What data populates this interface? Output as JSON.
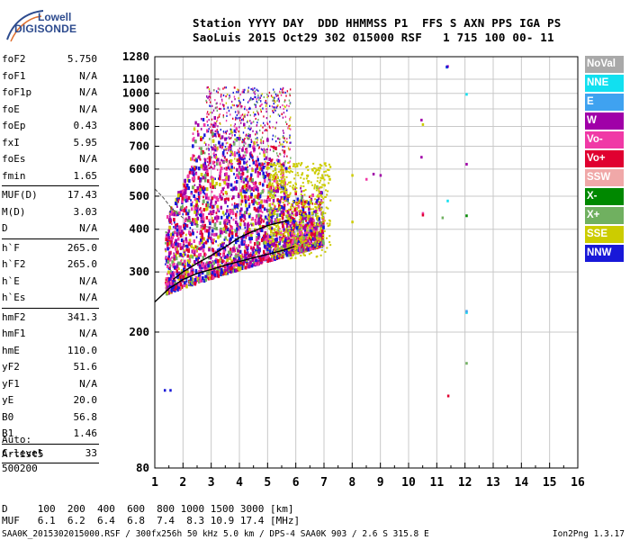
{
  "logo": {
    "line1": "Lowell",
    "line2": "DIGISONDE"
  },
  "header": {
    "line1": "Station YYYY DAY  DDD HHMMSS P1  FFS S AXN PPS IGA PS",
    "line2": "SaoLuis 2015 Oct29 302 015000 RSF   1 715 100 00- 11"
  },
  "params": [
    {
      "name": "foF2",
      "value": "5.750"
    },
    {
      "name": "foF1",
      "value": "N/A"
    },
    {
      "name": "foF1p",
      "value": "N/A"
    },
    {
      "name": "foE",
      "value": "N/A"
    },
    {
      "name": "foEp",
      "value": "0.43"
    },
    {
      "name": "fxI",
      "value": "5.95"
    },
    {
      "name": "foEs",
      "value": "N/A"
    },
    {
      "name": "fmin",
      "value": "1.65"
    },
    {
      "sep": true
    },
    {
      "name": "MUF(D)",
      "value": "17.43"
    },
    {
      "name": "M(D)",
      "value": "3.03"
    },
    {
      "name": "D",
      "value": "N/A"
    },
    {
      "sep": true
    },
    {
      "name": "h`F",
      "value": "265.0"
    },
    {
      "name": "h`F2",
      "value": "265.0"
    },
    {
      "name": "h`E",
      "value": "N/A"
    },
    {
      "name": "h`Es",
      "value": "N/A"
    },
    {
      "sep": true
    },
    {
      "name": "hmF2",
      "value": "341.3"
    },
    {
      "name": "hmF1",
      "value": "N/A"
    },
    {
      "name": "hmE",
      "value": "110.0"
    },
    {
      "name": "yF2",
      "value": "51.6"
    },
    {
      "name": "yF1",
      "value": "N/A"
    },
    {
      "name": "yE",
      "value": "20.0"
    },
    {
      "name": "B0",
      "value": "56.8"
    },
    {
      "name": "B1",
      "value": "1.46"
    },
    {
      "sep": true
    },
    {
      "name": "C-level",
      "value": "33"
    },
    {
      "sep": true
    }
  ],
  "auto_block": {
    "line1": "Auto:",
    "line2": "Artist5",
    "line3": "500200"
  },
  "legend": [
    {
      "label": "NoVal",
      "color": "#a9a9a9"
    },
    {
      "label": "NNE",
      "color": "#11e0f0"
    },
    {
      "label": "E",
      "color": "#3fa2f0"
    },
    {
      "label": "W",
      "color": "#a000a8"
    },
    {
      "label": "Vo-",
      "color": "#f039a6"
    },
    {
      "label": "Vo+",
      "color": "#e00030"
    },
    {
      "label": "SSW",
      "color": "#f0a8a8"
    },
    {
      "label": "X-",
      "color": "#008800"
    },
    {
      "label": "X+",
      "color": "#70b060"
    },
    {
      "label": "SSE",
      "color": "#cccc00"
    },
    {
      "label": "NNW",
      "color": "#1818d8"
    }
  ],
  "distance_table": {
    "row1": "D     100  200  400  600  800 1000 1500 3000 [km]",
    "row2": "MUF   6.1  6.2  6.4  6.8  7.4  8.3 10.9 17.4 [MHz]"
  },
  "footer": {
    "left": "SAA0K_2015302015000.RSF / 300fx256h 50 kHz 5.0 km / DPS-4 SAA0K 903 / 2.6 S 315.8 E",
    "right": "Ion2Png 1.3.17"
  },
  "chart_data": {
    "type": "scatter",
    "x_axis": {
      "min": 1,
      "max": 16,
      "ticks": [
        1,
        2,
        3,
        4,
        5,
        6,
        7,
        8,
        9,
        10,
        11,
        12,
        13,
        14,
        15,
        16
      ],
      "unit": "MHz"
    },
    "y_axis": {
      "scale": "log",
      "min": 80,
      "max": 1280,
      "ticks": [
        80,
        200,
        300,
        400,
        500,
        600,
        700,
        800,
        900,
        1000,
        1100,
        1280
      ],
      "unit": "km"
    },
    "grid": true,
    "series": [
      {
        "name": "NoVal",
        "color": "#a9a9a9"
      },
      {
        "name": "NNE",
        "color": "#11e0f0",
        "points": [
          [
            11.35,
            1192
          ],
          [
            12.05,
            228
          ],
          [
            12.05,
            993
          ],
          [
            11.38,
            484
          ]
        ]
      },
      {
        "name": "E",
        "color": "#3fa2f0",
        "points": [
          [
            12.05,
            230
          ]
        ]
      },
      {
        "name": "W",
        "color": "#a000a8",
        "points": [
          [
            11.38,
            1198
          ],
          [
            10.45,
            835
          ],
          [
            10.45,
            650
          ],
          [
            12.05,
            620
          ],
          [
            9.0,
            575
          ],
          [
            8.75,
            580
          ]
        ]
      },
      {
        "name": "Vo-",
        "color": "#f039a6",
        "points": [
          [
            8.5,
            560
          ],
          [
            10.5,
            445
          ]
        ]
      },
      {
        "name": "Vo+",
        "color": "#e00030",
        "points": [
          [
            11.4,
            130
          ],
          [
            10.5,
            440
          ]
        ]
      },
      {
        "name": "SSW",
        "color": "#f0a8a8",
        "points": [
          [
            3.6,
            620
          ]
        ]
      },
      {
        "name": "X-",
        "color": "#008800",
        "points": [
          [
            12.05,
            438
          ]
        ]
      },
      {
        "name": "X+",
        "color": "#70b060",
        "points": [
          [
            12.05,
            162
          ],
          [
            11.2,
            432
          ]
        ]
      },
      {
        "name": "SSE",
        "color": "#cccc00",
        "points": [
          [
            8.0,
            575
          ],
          [
            8.0,
            420
          ],
          [
            10.5,
            810
          ],
          [
            7.2,
            560
          ]
        ]
      },
      {
        "name": "NNW",
        "color": "#1818d8",
        "points": [
          [
            1.35,
            135
          ],
          [
            1.55,
            135
          ],
          [
            11.35,
            1195
          ]
        ]
      }
    ],
    "traces": [
      {
        "color": "#000000",
        "points": [
          [
            1.0,
            245
          ],
          [
            1.5,
            268
          ],
          [
            2.0,
            285
          ],
          [
            2.5,
            297
          ],
          [
            3.0,
            305
          ],
          [
            3.5,
            314
          ],
          [
            4.0,
            322
          ],
          [
            4.5,
            330
          ],
          [
            5.0,
            338
          ],
          [
            5.5,
            346
          ],
          [
            5.95,
            356
          ]
        ]
      },
      {
        "color": "#000000",
        "points": [
          [
            1.65,
            285
          ],
          [
            2.0,
            300
          ],
          [
            2.5,
            318
          ],
          [
            3.0,
            335
          ],
          [
            3.5,
            355
          ],
          [
            4.0,
            378
          ],
          [
            4.5,
            395
          ],
          [
            5.0,
            410
          ],
          [
            5.5,
            420
          ],
          [
            5.75,
            424
          ]
        ]
      },
      {
        "color": "#555555",
        "points": [
          [
            1.0,
            525
          ],
          [
            1.3,
            495
          ],
          [
            1.6,
            460
          ],
          [
            2.0,
            432
          ],
          [
            2.6,
            410
          ],
          [
            3.2,
            402
          ]
        ]
      }
    ]
  }
}
